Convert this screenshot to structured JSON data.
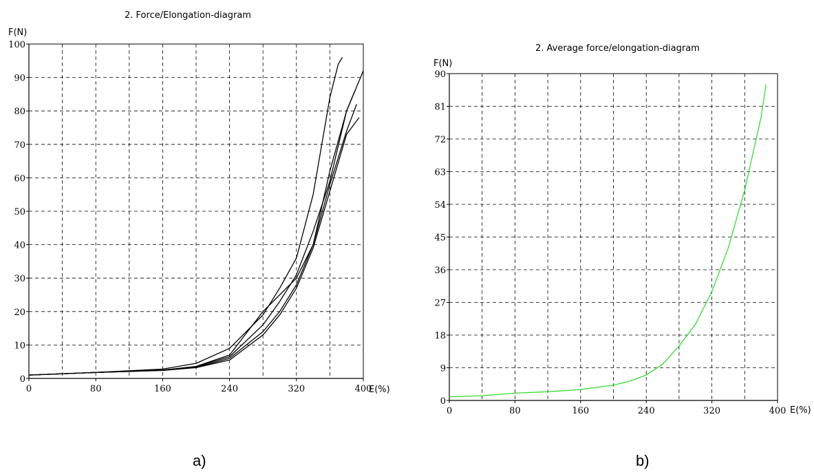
{
  "chart_data": [
    {
      "type": "line",
      "title": "2.  Force/Elongation-diagram",
      "xlabel": "E(%)",
      "ylabel": "F(N)",
      "xlim": [
        0,
        400
      ],
      "ylim": [
        0,
        100
      ],
      "xticks": [
        "0",
        "80",
        "160",
        "240",
        "320",
        "400"
      ],
      "yticks": [
        "0",
        "10",
        "20",
        "30",
        "40",
        "50",
        "60",
        "70",
        "80",
        "90",
        "100"
      ],
      "grid": true,
      "line_color": "#000000",
      "series": [
        {
          "x": [
            0,
            80,
            160,
            200,
            240,
            280,
            300,
            320,
            340,
            360,
            370,
            375
          ],
          "y": [
            1,
            1.8,
            2.8,
            4.5,
            9,
            19,
            27,
            36,
            55,
            84,
            94,
            96
          ]
        },
        {
          "x": [
            0,
            80,
            160,
            200,
            240,
            280,
            300,
            320,
            340,
            360,
            380,
            390
          ],
          "y": [
            1,
            1.8,
            2.5,
            3.6,
            7,
            20,
            25,
            30,
            40,
            62,
            80,
            86
          ]
        },
        {
          "x": [
            0,
            80,
            160,
            200,
            240,
            280,
            300,
            320,
            340,
            360,
            380,
            395,
            400
          ],
          "y": [
            1,
            1.8,
            2.5,
            3.5,
            6.5,
            16,
            23,
            31,
            44,
            59,
            80,
            89,
            92
          ]
        },
        {
          "x": [
            0,
            80,
            160,
            200,
            240,
            280,
            300,
            320,
            340,
            360,
            380,
            392
          ],
          "y": [
            1,
            1.8,
            2.4,
            3.3,
            6,
            14,
            20,
            28,
            40,
            58,
            74,
            82
          ]
        },
        {
          "x": [
            0,
            80,
            160,
            200,
            240,
            280,
            300,
            320,
            340,
            360,
            380,
            395
          ],
          "y": [
            1,
            1.8,
            2.4,
            3.2,
            5.5,
            13,
            19,
            27,
            39,
            56,
            73,
            78
          ]
        }
      ]
    },
    {
      "type": "line",
      "title": "2.  Average force/elongation-diagram",
      "xlabel": "E(%)",
      "ylabel": "F(N)",
      "xlim": [
        0,
        400
      ],
      "ylim": [
        0,
        90
      ],
      "xticks": [
        "0",
        "80",
        "160",
        "240",
        "320",
        "400"
      ],
      "yticks": [
        "0",
        "9",
        "18",
        "27",
        "36",
        "45",
        "54",
        "63",
        "72",
        "81",
        "90"
      ],
      "grid": true,
      "line_color": "#33dd33",
      "series": [
        {
          "x": [
            0,
            40,
            80,
            120,
            160,
            200,
            220,
            240,
            260,
            280,
            300,
            320,
            340,
            360,
            380,
            386
          ],
          "y": [
            1,
            1.3,
            2,
            2.4,
            3,
            4.2,
            5.3,
            7,
            10,
            15,
            21,
            30,
            42,
            58,
            78,
            87
          ]
        }
      ]
    }
  ],
  "labels": {
    "panel_a": "a)",
    "panel_b": "b)"
  }
}
